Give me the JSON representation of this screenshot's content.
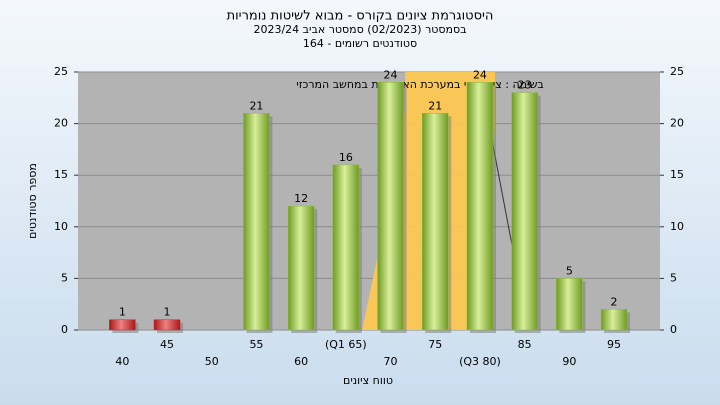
{
  "chart_data": {
    "type": "bar",
    "title": "היסטוגרמת ציונים בקורס - מבוא לשיטות נומריות",
    "subtitle": "בסמסטר  (02/2023)  סמסטר אביב  2023/24",
    "subtitle2": "סטודנטים רשומים - 164",
    "annotation": "בשימה : ציון סופי במערכת האקדמית במחשב המרכזי",
    "x_label": "טווח ציונים",
    "y_label": "מספר סטודנטים",
    "categories": [
      "40",
      "45",
      "50",
      "55",
      "60",
      "(Q1 65)",
      "70",
      "75",
      "(Q3 80)",
      "85",
      "90",
      "95"
    ],
    "values": [
      1,
      1,
      null,
      21,
      12,
      16,
      24,
      21,
      24,
      23,
      5,
      2
    ],
    "colors": [
      "#d62b2b",
      "#d62b2b",
      "#8fbf3a",
      "#8fbf3a",
      "#8fbf3a",
      "#8fbf3a",
      "#8fbf3a",
      "#8fbf3a",
      "#8fbf3a",
      "#8fbf3a",
      "#8fbf3a",
      "#8fbf3a"
    ],
    "ylim": [
      0,
      25
    ],
    "yticks": [
      0,
      5,
      10,
      15,
      20,
      25
    ],
    "grid": true
  }
}
